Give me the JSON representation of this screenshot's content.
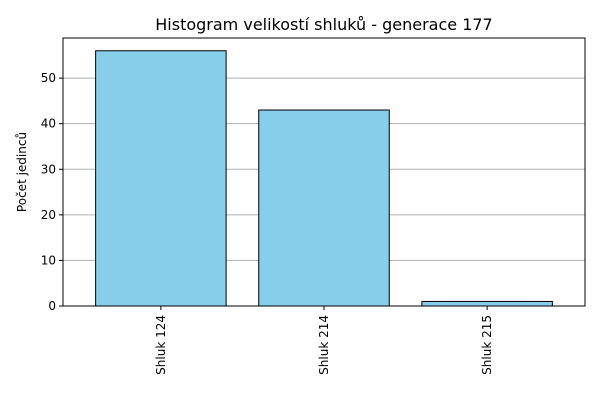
{
  "chart_data": {
    "type": "bar",
    "title": "Histogram velikostí shluků - generace 177",
    "xlabel": "",
    "ylabel": "Počet jedinců",
    "categories": [
      "Shluk 124",
      "Shluk 214",
      "Shluk 215"
    ],
    "values": [
      56,
      43,
      1
    ],
    "ylim": [
      0,
      58.8
    ],
    "yticks": [
      "0",
      "10",
      "20",
      "30",
      "40",
      "50"
    ],
    "grid": "y",
    "bar_color": "#87ceeb",
    "bar_edge_color": "#000000",
    "grid_color": "#b0b0b0"
  }
}
